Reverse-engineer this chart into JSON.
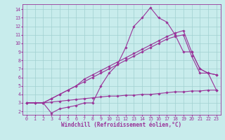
{
  "xlabel": "Windchill (Refroidissement éolien,°C)",
  "background_color": "#c8ecec",
  "grid_color": "#a0d0d0",
  "line_color": "#993399",
  "xlim_min": -0.5,
  "xlim_max": 23.5,
  "ylim_min": 1.6,
  "ylim_max": 14.6,
  "xticks": [
    0,
    1,
    2,
    3,
    4,
    5,
    6,
    7,
    8,
    9,
    10,
    11,
    12,
    13,
    14,
    15,
    16,
    17,
    18,
    19,
    20,
    21,
    22,
    23
  ],
  "yticks": [
    2,
    3,
    4,
    5,
    6,
    7,
    8,
    9,
    10,
    11,
    12,
    13,
    14
  ],
  "lines": [
    {
      "x": [
        0,
        1,
        2,
        3,
        4,
        5,
        6,
        7,
        8,
        9,
        10,
        11,
        12,
        13,
        14,
        15,
        16,
        17,
        18,
        19,
        20,
        21,
        22,
        23
      ],
      "y": [
        3.0,
        3.0,
        3.0,
        3.1,
        3.2,
        3.3,
        3.4,
        3.5,
        3.6,
        3.7,
        3.8,
        3.8,
        3.9,
        3.9,
        4.0,
        4.0,
        4.1,
        4.2,
        4.3,
        4.3,
        4.4,
        4.4,
        4.5,
        4.5
      ]
    },
    {
      "x": [
        0,
        1,
        2,
        3,
        4,
        5,
        6,
        7,
        8,
        9,
        10,
        11,
        12,
        13,
        14,
        15,
        16,
        17,
        18,
        19,
        20,
        21,
        22,
        23
      ],
      "y": [
        3.0,
        3.0,
        3.0,
        3.5,
        4.0,
        4.5,
        5.0,
        5.5,
        6.0,
        6.5,
        7.0,
        7.5,
        8.0,
        8.5,
        9.0,
        9.5,
        10.0,
        10.5,
        10.8,
        11.0,
        8.5,
        6.5,
        6.5,
        6.3
      ]
    },
    {
      "x": [
        0,
        1,
        2,
        3,
        4,
        5,
        6,
        7,
        8,
        9,
        10,
        11,
        12,
        13,
        14,
        15,
        16,
        17,
        18,
        19,
        20,
        21,
        22,
        23
      ],
      "y": [
        3.0,
        3.0,
        3.0,
        3.5,
        4.0,
        4.5,
        5.0,
        5.8,
        6.3,
        6.8,
        7.3,
        7.8,
        8.3,
        8.8,
        9.3,
        9.8,
        10.3,
        10.8,
        11.2,
        11.5,
        9.0,
        7.0,
        6.5,
        6.3
      ]
    },
    {
      "x": [
        0,
        2,
        3,
        4,
        5,
        6,
        7,
        8,
        9,
        10,
        11,
        12,
        13,
        14,
        15,
        16,
        17,
        18,
        19,
        20,
        21,
        22,
        23
      ],
      "y": [
        3.0,
        3.0,
        1.8,
        2.3,
        2.5,
        2.7,
        3.0,
        3.0,
        5.0,
        6.5,
        7.5,
        9.5,
        12.0,
        13.0,
        14.2,
        13.0,
        12.5,
        11.0,
        9.0,
        9.0,
        7.0,
        6.5,
        4.5
      ]
    }
  ],
  "marker": "D",
  "markersize": 1.8,
  "linewidth": 0.8,
  "tick_fontsize": 4.8,
  "xlabel_fontsize": 5.5
}
